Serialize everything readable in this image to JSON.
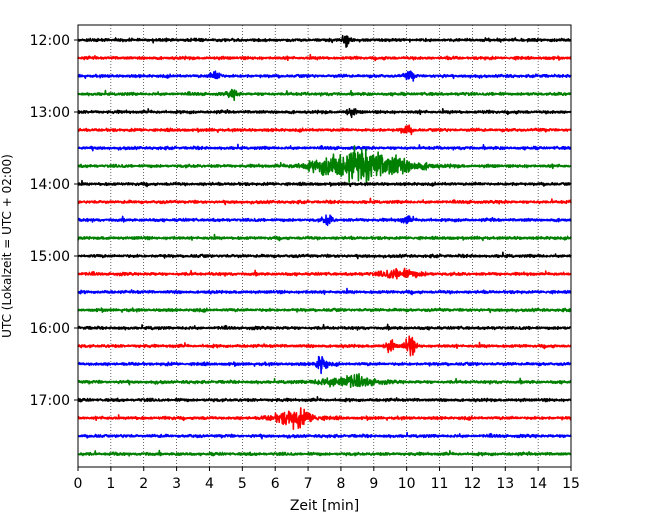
{
  "chart_data": {
    "type": "line",
    "title": "",
    "xlabel": "Zeit  [min]",
    "ylabel": "UTC (Lokalzeit = UTC + 02:00)",
    "xlim": [
      0,
      15
    ],
    "x_ticks": [
      "0",
      "1",
      "2",
      "3",
      "4",
      "5",
      "6",
      "7",
      "8",
      "9",
      "10",
      "11",
      "12",
      "13",
      "14",
      "15"
    ],
    "grid": "vertical dotted",
    "y_tick_labels": [
      "12:00",
      "13:00",
      "14:00",
      "15:00",
      "16:00",
      "17:00"
    ],
    "trace_start_times": [
      "12:00",
      "12:15",
      "12:30",
      "12:45",
      "13:00",
      "13:15",
      "13:30",
      "13:45",
      "14:00",
      "14:15",
      "14:30",
      "14:45",
      "15:00",
      "15:15",
      "15:30",
      "15:45",
      "16:00",
      "16:15",
      "16:30",
      "16:45",
      "17:00",
      "17:15",
      "17:30",
      "17:45"
    ],
    "trace_colors": [
      "#000000",
      "#ff0000",
      "#0000ff",
      "#008000"
    ],
    "events": [
      {
        "trace": 0,
        "minute": 8.2,
        "amp": 0.45
      },
      {
        "trace": 2,
        "minute": 4.2,
        "amp": 0.4
      },
      {
        "trace": 2,
        "minute": 10.1,
        "amp": 0.35
      },
      {
        "trace": 3,
        "minute": 4.7,
        "amp": 0.35
      },
      {
        "trace": 4,
        "minute": 8.3,
        "amp": 0.3
      },
      {
        "trace": 5,
        "minute": 10.0,
        "amp": 0.4
      },
      {
        "trace": 7,
        "minute": 9.0,
        "amp": 1.0,
        "width": 1.2
      },
      {
        "trace": 7,
        "minute": 8.0,
        "amp": 0.6,
        "width": 1.0
      },
      {
        "trace": 10,
        "minute": 7.6,
        "amp": 0.4
      },
      {
        "trace": 10,
        "minute": 10.0,
        "amp": 0.3
      },
      {
        "trace": 13,
        "minute": 9.8,
        "amp": 0.35,
        "width": 0.6
      },
      {
        "trace": 17,
        "minute": 10.1,
        "amp": 0.9
      },
      {
        "trace": 17,
        "minute": 9.5,
        "amp": 0.45
      },
      {
        "trace": 18,
        "minute": 7.4,
        "amp": 0.8
      },
      {
        "trace": 19,
        "minute": 8.2,
        "amp": 0.5,
        "width": 0.8
      },
      {
        "trace": 21,
        "minute": 6.6,
        "amp": 0.7,
        "width": 0.6
      }
    ]
  }
}
